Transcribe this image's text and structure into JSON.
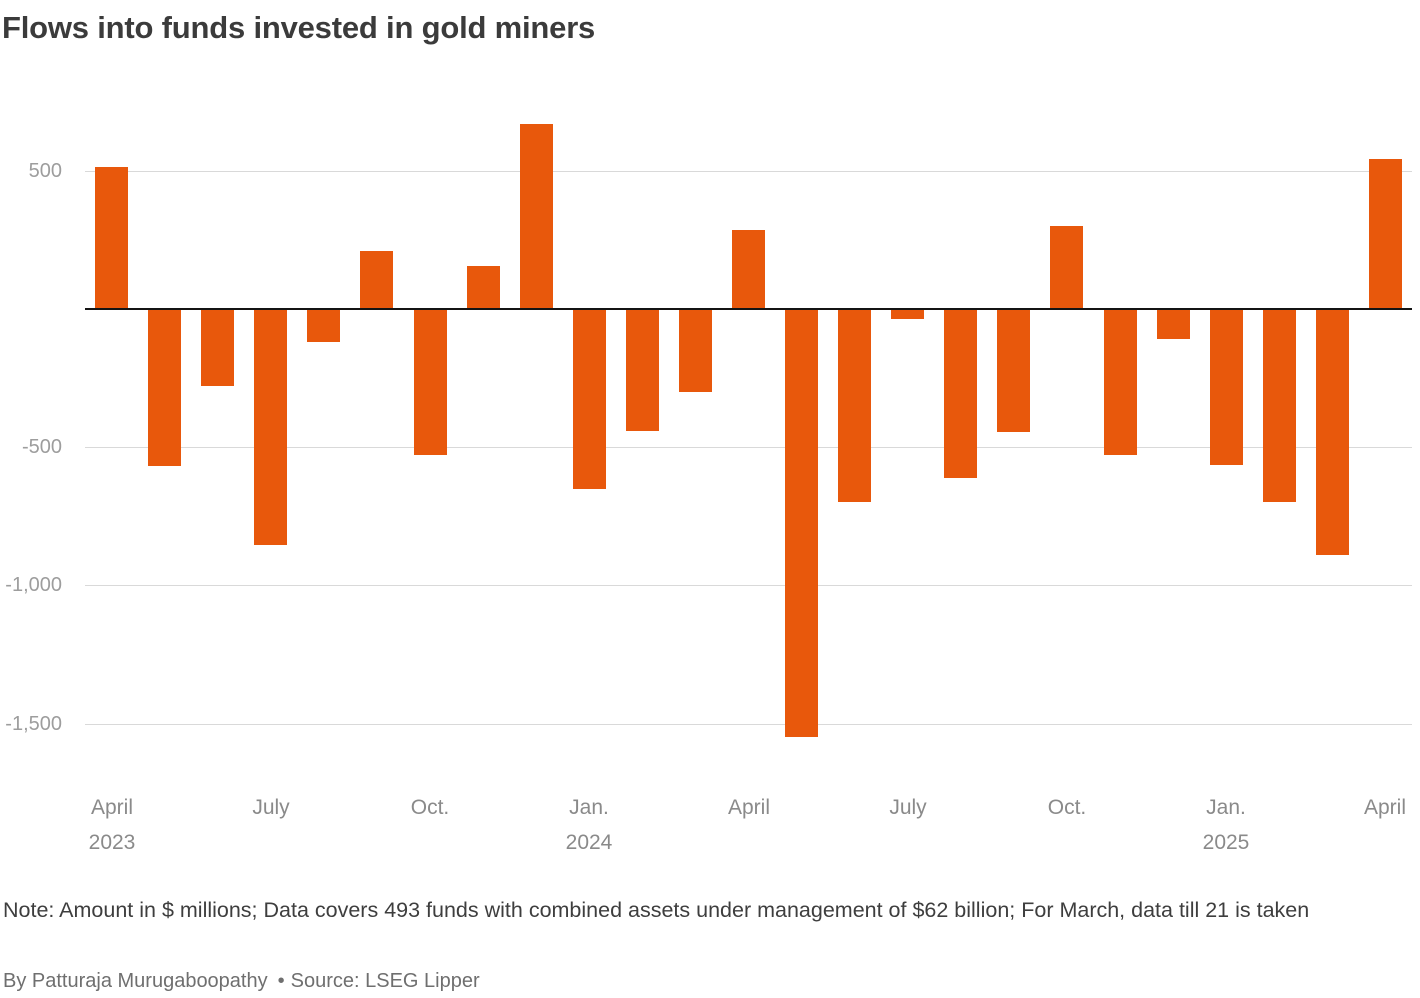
{
  "title": "Flows into funds invested in gold miners",
  "note": "Note: Amount in $ millions; Data covers 493 funds with combined assets under management of $62 billion; For March, data till 21 is taken",
  "byline": "By Patturaja Murugaboopathy",
  "source_separator": "•",
  "source": "Source: LSEG Lipper",
  "colors": {
    "bar": "#e8580c",
    "grid": "#d9d9d9",
    "zero_line": "#141414",
    "y_tick_text": "#9d9d9d",
    "x_tick_text": "#8a8a8a",
    "title_text": "#3b3b3b",
    "note_text": "#3e3e3e",
    "byline_text": "#6f6f6f",
    "background": "#ffffff"
  },
  "chart_data": {
    "type": "bar",
    "title": "Flows into funds invested in gold miners",
    "unit": "$ millions",
    "xlabel": "",
    "ylabel": "",
    "grid": true,
    "legend": false,
    "ylim": [
      -1650,
      775
    ],
    "categories": [
      "April 2023",
      "May 2023",
      "June 2023",
      "July 2023",
      "Aug. 2023",
      "Sept. 2023",
      "Oct. 2023",
      "Nov. 2023",
      "Dec. 2023",
      "Jan. 2024",
      "Feb. 2024",
      "March 2024",
      "April 2024",
      "May 2024",
      "June 2024",
      "July 2024",
      "Aug. 2024",
      "Sept. 2024",
      "Oct. 2024",
      "Nov. 2024",
      "Dec. 2024",
      "Jan. 2025",
      "Feb. 2025",
      "March 2025",
      "April 2025"
    ],
    "values": [
      515,
      -570,
      -280,
      -855,
      -120,
      210,
      -530,
      155,
      670,
      -650,
      -440,
      -300,
      285,
      -1550,
      -700,
      -35,
      -610,
      -445,
      300,
      -530,
      -110,
      -565,
      -700,
      -890,
      545
    ],
    "yticks": [
      {
        "value": 500,
        "label": "500"
      },
      {
        "value": -500,
        "label": "-500"
      },
      {
        "value": -1000,
        "label": "-1,000"
      },
      {
        "value": -1500,
        "label": "-1,500"
      }
    ],
    "xticks": [
      {
        "index": 0,
        "label": "April",
        "sublabel": "2023"
      },
      {
        "index": 3,
        "label": "July",
        "sublabel": ""
      },
      {
        "index": 6,
        "label": "Oct.",
        "sublabel": ""
      },
      {
        "index": 9,
        "label": "Jan.",
        "sublabel": "2024"
      },
      {
        "index": 12,
        "label": "April",
        "sublabel": ""
      },
      {
        "index": 15,
        "label": "July",
        "sublabel": ""
      },
      {
        "index": 18,
        "label": "Oct.",
        "sublabel": ""
      },
      {
        "index": 21,
        "label": "Jan.",
        "sublabel": "2025"
      },
      {
        "index": 24,
        "label": "April",
        "sublabel": ""
      }
    ]
  }
}
